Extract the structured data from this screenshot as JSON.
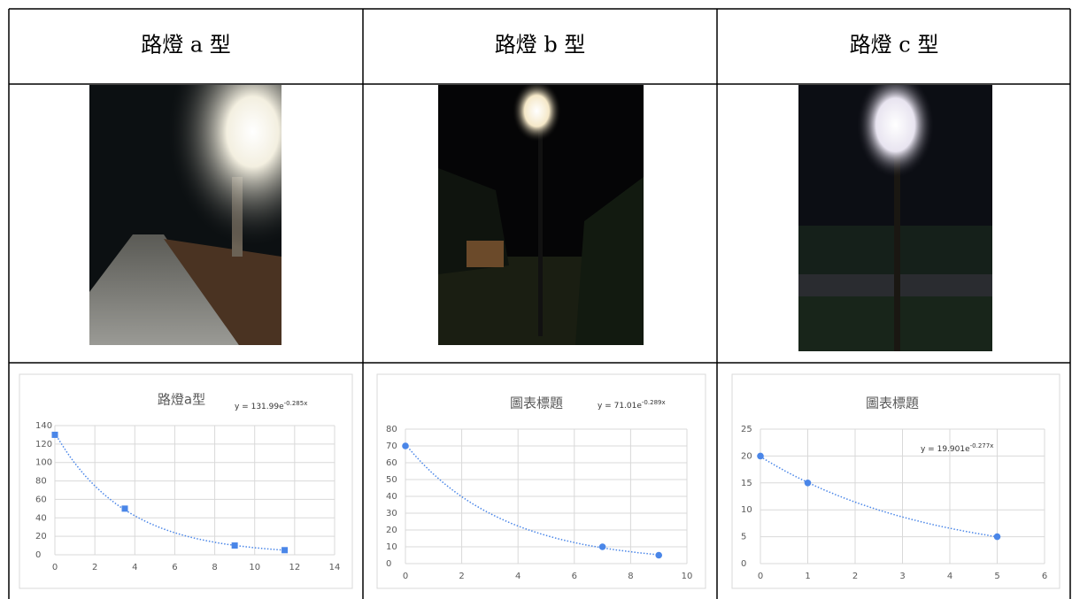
{
  "table": {
    "headers": [
      "路燈 a 型",
      "路燈 b 型",
      "路燈 c 型"
    ]
  },
  "chart_data": [
    {
      "type": "scatter",
      "title": "路燈a型",
      "x": [
        0,
        3.5,
        9,
        11.5
      ],
      "values": [
        130,
        50,
        10,
        5
      ],
      "color": "#4a86e8",
      "marker": "square",
      "xlim": [
        0,
        14
      ],
      "xticks": [
        0,
        2,
        4,
        6,
        8,
        10,
        12,
        14
      ],
      "ylim": [
        0,
        140
      ],
      "yticks": [
        0,
        20,
        40,
        60,
        80,
        100,
        120,
        140
      ],
      "grid": true,
      "trendline": {
        "a": 131.99,
        "k": -0.285,
        "equation": "y = 131.99e",
        "exponent": "-0.285x"
      }
    },
    {
      "type": "scatter",
      "title": "圖表標題",
      "x": [
        0,
        7,
        9
      ],
      "values": [
        70,
        10,
        5
      ],
      "color": "#4a86e8",
      "marker": "circle",
      "xlim": [
        0,
        10
      ],
      "xticks": [
        0,
        2,
        4,
        6,
        8,
        10
      ],
      "ylim": [
        0,
        80
      ],
      "yticks": [
        0,
        10,
        20,
        30,
        40,
        50,
        60,
        70,
        80
      ],
      "grid": true,
      "trendline": {
        "a": 71.01,
        "k": -0.289,
        "equation": "y = 71.01e",
        "exponent": "-0.289x"
      }
    },
    {
      "type": "scatter",
      "title": "圖表標題",
      "x": [
        0,
        1,
        5
      ],
      "values": [
        20,
        15,
        5
      ],
      "color": "#4a86e8",
      "marker": "circle",
      "xlim": [
        0,
        6
      ],
      "xticks": [
        0,
        1,
        2,
        3,
        4,
        5,
        6
      ],
      "ylim": [
        0,
        25
      ],
      "yticks": [
        0,
        5,
        10,
        15,
        20,
        25
      ],
      "grid": true,
      "trendline": {
        "a": 19.901,
        "k": -0.277,
        "equation": "y = 19.901e",
        "exponent": "-0.277x"
      }
    }
  ]
}
